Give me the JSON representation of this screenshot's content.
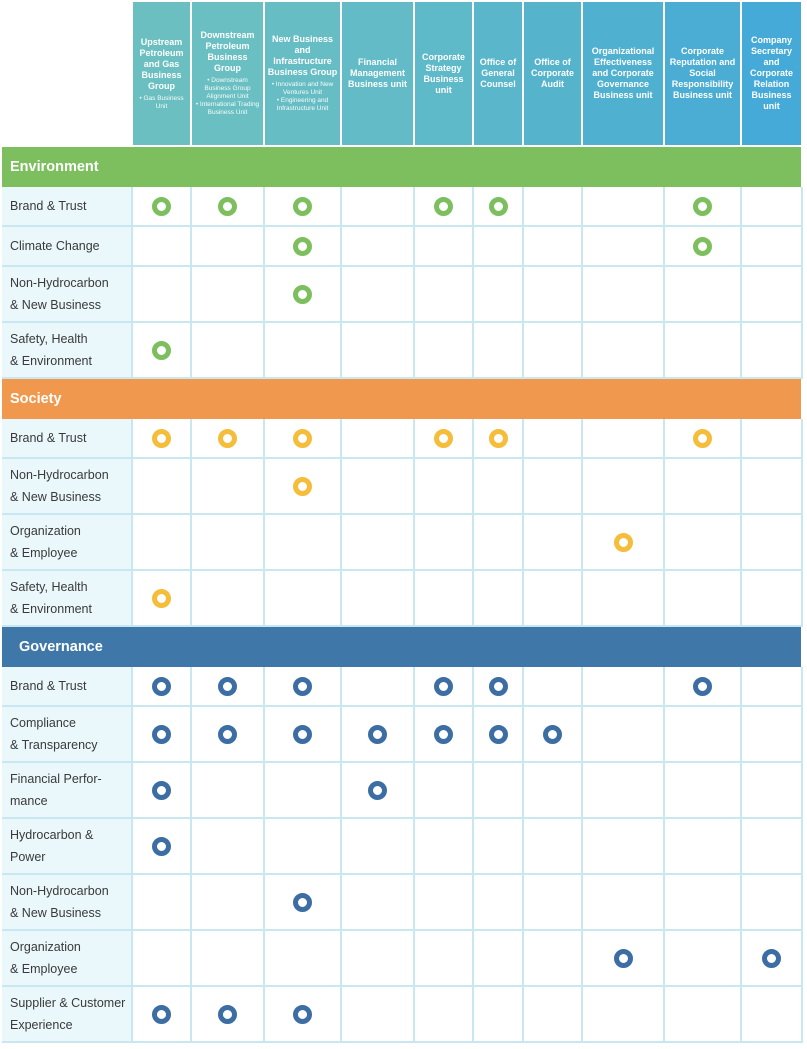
{
  "columns": [
    {
      "title": "Upstream Petroleum and Gas Business Group",
      "subtitle": "• Gas Business Unit",
      "color": "#6cbfc0"
    },
    {
      "title": "Downstream Petroleum Business Group",
      "subtitle": "• Downstream Business Group Alignment Unit\n• International Trading Business Unit",
      "color": "#6abfc2"
    },
    {
      "title": "New Business and Infrastructure Business Group",
      "subtitle": "• Innovation and New Ventures Unit\n• Engineering and Infrastructure Unit",
      "color": "#66bdc4"
    },
    {
      "title": "Financial Management Business unit",
      "subtitle": "",
      "color": "#62bbc6"
    },
    {
      "title": "Corporate Strategy Business unit",
      "subtitle": "",
      "color": "#5eb9c8"
    },
    {
      "title": "Office of General Counsel",
      "subtitle": "",
      "color": "#5ab6ca"
    },
    {
      "title": "Office of Corporate Audit",
      "subtitle": "",
      "color": "#56b3cc"
    },
    {
      "title": "Organizational Effectiveness and Corporate Governance Business unit",
      "subtitle": "",
      "color": "#50b0d0"
    },
    {
      "title": "Corporate Reputation and Social Responsibility Business unit",
      "subtitle": "",
      "color": "#4badd3"
    },
    {
      "title": "Company Secretary and Corporate Relation Business unit",
      "subtitle": "",
      "color": "#46aad8"
    }
  ],
  "sections": [
    {
      "name": "Environment",
      "color": "#7dbf5f",
      "dot_color": "#7dbf5f",
      "rows": [
        {
          "label": "Brand & Trust",
          "marks": [
            1,
            1,
            1,
            0,
            1,
            1,
            0,
            0,
            1,
            0
          ]
        },
        {
          "label": "Climate Change",
          "marks": [
            0,
            0,
            1,
            0,
            0,
            0,
            0,
            0,
            1,
            0
          ]
        },
        {
          "label": "Non-Hydrocarbon\n& New Business",
          "marks": [
            0,
            0,
            1,
            0,
            0,
            0,
            0,
            0,
            0,
            0
          ]
        },
        {
          "label": "Safety, Health\n& Environment",
          "marks": [
            1,
            0,
            0,
            0,
            0,
            0,
            0,
            0,
            0,
            0
          ]
        }
      ]
    },
    {
      "name": "Society",
      "color": "#f0994e",
      "dot_color": "#f5bd3a",
      "rows": [
        {
          "label": "Brand & Trust",
          "marks": [
            1,
            1,
            1,
            0,
            1,
            1,
            0,
            0,
            1,
            0
          ]
        },
        {
          "label": "Non-Hydrocarbon\n& New Business",
          "marks": [
            0,
            0,
            1,
            0,
            0,
            0,
            0,
            0,
            0,
            0
          ]
        },
        {
          "label": "Organization\n& Employee",
          "marks": [
            0,
            0,
            0,
            0,
            0,
            0,
            0,
            1,
            0,
            0
          ]
        },
        {
          "label": "Safety, Health\n& Environment",
          "marks": [
            1,
            0,
            0,
            0,
            0,
            0,
            0,
            0,
            0,
            0
          ]
        }
      ]
    },
    {
      "name": "Governance",
      "color": "#3f77a8",
      "dot_color": "#3d6ea3",
      "rows": [
        {
          "label": "Brand & Trust",
          "marks": [
            1,
            1,
            1,
            0,
            1,
            1,
            0,
            0,
            1,
            0
          ]
        },
        {
          "label": "Compliance\n& Transparency",
          "marks": [
            1,
            1,
            1,
            1,
            1,
            1,
            1,
            0,
            0,
            0
          ]
        },
        {
          "label": "Financial Perfor-\nmance",
          "marks": [
            1,
            0,
            0,
            1,
            0,
            0,
            0,
            0,
            0,
            0
          ]
        },
        {
          "label": "Hydrocarbon &\nPower",
          "marks": [
            1,
            0,
            0,
            0,
            0,
            0,
            0,
            0,
            0,
            0
          ]
        },
        {
          "label": "Non-Hydrocarbon\n& New Business",
          "marks": [
            0,
            0,
            1,
            0,
            0,
            0,
            0,
            0,
            0,
            0
          ]
        },
        {
          "label": "Organization\n& Employee",
          "marks": [
            0,
            0,
            0,
            0,
            0,
            0,
            0,
            1,
            0,
            1
          ]
        },
        {
          "label": "Supplier & Customer\nExperience",
          "marks": [
            1,
            1,
            1,
            0,
            0,
            0,
            0,
            0,
            0,
            0
          ]
        }
      ]
    }
  ]
}
